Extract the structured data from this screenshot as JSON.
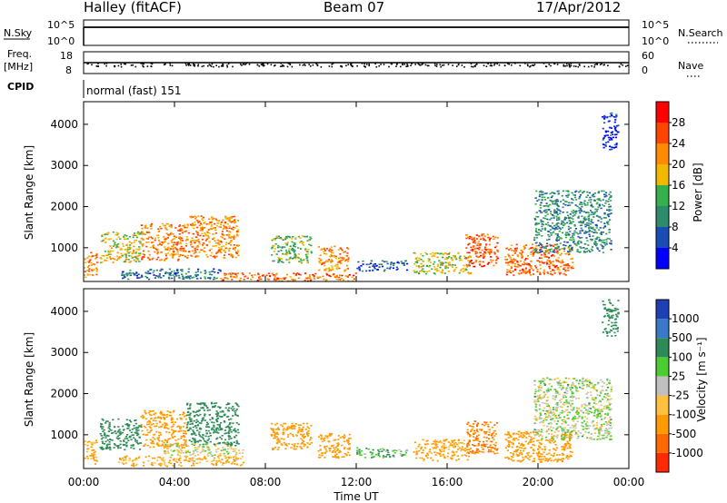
{
  "header": {
    "title": "Halley (fitACF)",
    "beam": "Beam 07",
    "date": "17/Apr/2012"
  },
  "strip_panels": {
    "nsky_label": "N.Sky",
    "nsky_ticks": [
      "10^5",
      "10^0"
    ],
    "nsearch_label": "N.Search",
    "freq_label": "Freq.",
    "freq_unit": "[MHz]",
    "freq_ticks": [
      "18",
      "8"
    ],
    "nave_label": "Nave",
    "nave_ticks": [
      "60",
      "0"
    ],
    "cpid_label": "CPID",
    "cpid_text": "normal (fast) 151"
  },
  "colors": {
    "power_scale": [
      "#0000ff",
      "#1a4db3",
      "#2e8b6b",
      "#35b04a",
      "#f2b800",
      "#ff8c00",
      "#ff4500",
      "#ff0000"
    ],
    "velocity_scale": [
      "#1f3fb5",
      "#3a78c8",
      "#2e8b57",
      "#4ccc33",
      "#c0c0c0",
      "#ffc040",
      "#ff9a00",
      "#ff6a00",
      "#ff2a00"
    ]
  },
  "chart_data": [
    {
      "type": "heatmap",
      "name": "power",
      "ylabel": "Slant Range [km]",
      "yticks": [
        1000,
        2000,
        3000,
        4000
      ],
      "ylim": [
        180,
        4550
      ],
      "xlim": [
        0,
        24
      ],
      "colorbar_label": "Power [dB]",
      "colorbar_ticks": [
        "4",
        "8",
        "12",
        "16",
        "20",
        "24",
        "28"
      ],
      "colorbar_range": [
        0,
        32
      ],
      "regions": [
        {
          "t": [
            0.0,
            0.6
          ],
          "r": [
            300,
            900
          ],
          "v": 22
        },
        {
          "t": [
            0.7,
            2.5
          ],
          "r": [
            650,
            1400
          ],
          "v": 18
        },
        {
          "t": [
            2.5,
            4.5
          ],
          "r": [
            700,
            1600
          ],
          "v": 23
        },
        {
          "t": [
            4.5,
            6.8
          ],
          "r": [
            750,
            1800
          ],
          "v": 22
        },
        {
          "t": [
            1.5,
            6.0
          ],
          "r": [
            250,
            500
          ],
          "v": 8
        },
        {
          "t": [
            6.0,
            12.0
          ],
          "r": [
            200,
            400
          ],
          "v": 24
        },
        {
          "t": [
            8.2,
            10.0
          ],
          "r": [
            650,
            1300
          ],
          "v": 14
        },
        {
          "t": [
            10.3,
            11.7
          ],
          "r": [
            450,
            1050
          ],
          "v": 22
        },
        {
          "t": [
            12.0,
            14.2
          ],
          "r": [
            450,
            700
          ],
          "v": 6
        },
        {
          "t": [
            14.5,
            17.0
          ],
          "r": [
            380,
            900
          ],
          "v": 16
        },
        {
          "t": [
            16.8,
            18.2
          ],
          "r": [
            550,
            1350
          ],
          "v": 25
        },
        {
          "t": [
            18.5,
            21.5
          ],
          "r": [
            350,
            1100
          ],
          "v": 24
        },
        {
          "t": [
            19.8,
            23.2
          ],
          "r": [
            900,
            2400
          ],
          "v": 10
        },
        {
          "t": [
            22.8,
            23.5
          ],
          "r": [
            3400,
            4300
          ],
          "v": 4
        }
      ]
    },
    {
      "type": "heatmap",
      "name": "velocity",
      "ylabel": "Slant Range [km]",
      "yticks": [
        1000,
        2000,
        3000,
        4000
      ],
      "ylim": [
        180,
        4550
      ],
      "xlim": [
        0,
        24
      ],
      "xticks": [
        "00:00",
        "04:00",
        "08:00",
        "12:00",
        "16:00",
        "20:00",
        "00:00"
      ],
      "xlabel": "Time UT",
      "colorbar_label": "Velocity [m s⁻¹]",
      "colorbar_ticks": [
        "1000",
        "500",
        "100",
        "25",
        "-25",
        "-100",
        "-500",
        "-1000"
      ],
      "regions": [
        {
          "t": [
            0.0,
            0.6
          ],
          "r": [
            300,
            900
          ],
          "v": -150
        },
        {
          "t": [
            0.7,
            2.5
          ],
          "r": [
            650,
            1400
          ],
          "v": 300
        },
        {
          "t": [
            2.5,
            4.5
          ],
          "r": [
            700,
            1600
          ],
          "v": -200
        },
        {
          "t": [
            4.5,
            6.8
          ],
          "r": [
            750,
            1800
          ],
          "v": 400
        },
        {
          "t": [
            1.5,
            7.0
          ],
          "r": [
            250,
            500
          ],
          "v": -120
        },
        {
          "t": [
            3.5,
            7.0
          ],
          "r": [
            500,
            800
          ],
          "v": 0
        },
        {
          "t": [
            8.2,
            10.0
          ],
          "r": [
            650,
            1300
          ],
          "v": -300
        },
        {
          "t": [
            10.3,
            11.7
          ],
          "r": [
            450,
            1050
          ],
          "v": -400
        },
        {
          "t": [
            12.0,
            14.2
          ],
          "r": [
            450,
            700
          ],
          "v": 80
        },
        {
          "t": [
            14.5,
            17.0
          ],
          "r": [
            380,
            900
          ],
          "v": -150
        },
        {
          "t": [
            16.8,
            18.2
          ],
          "r": [
            550,
            1350
          ],
          "v": -500
        },
        {
          "t": [
            18.5,
            21.5
          ],
          "r": [
            350,
            1100
          ],
          "v": -300
        },
        {
          "t": [
            19.8,
            23.2
          ],
          "r": [
            900,
            2400
          ],
          "v": 10
        },
        {
          "t": [
            22.8,
            23.5
          ],
          "r": [
            3400,
            4300
          ],
          "v": 200
        }
      ]
    }
  ]
}
